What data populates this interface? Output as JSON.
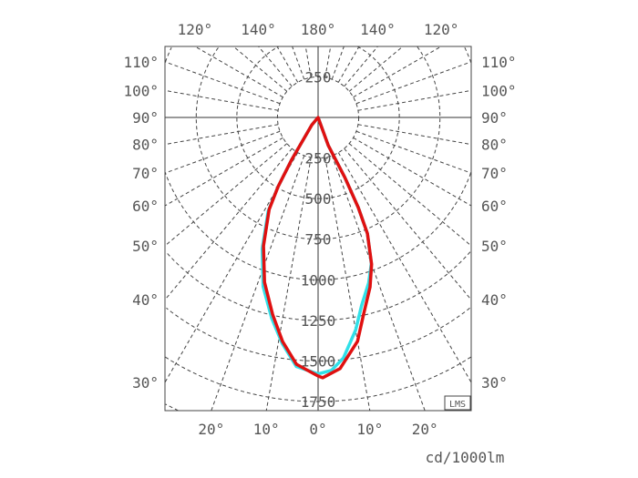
{
  "chart_data": {
    "type": "polar-line",
    "unit_label": "cd/1000lm",
    "badge": "LMS",
    "radial_ticks": [
      250,
      500,
      750,
      1000,
      1250,
      1500,
      1750
    ],
    "upper_radial_labels": [
      250
    ],
    "angle_grid_step_deg": 10,
    "top_angle_labels": [
      {
        "angle": -120,
        "label": "120°"
      },
      {
        "angle": -140,
        "label": "140°"
      },
      {
        "angle": 180,
        "label": "180°"
      },
      {
        "angle": 140,
        "label": "140°"
      },
      {
        "angle": 120,
        "label": "120°"
      }
    ],
    "side_angle_labels": [
      {
        "angle": 110,
        "label": "110°"
      },
      {
        "angle": 100,
        "label": "100°"
      },
      {
        "angle": 90,
        "label": "90°"
      },
      {
        "angle": 80,
        "label": "80°"
      },
      {
        "angle": 70,
        "label": "70°"
      },
      {
        "angle": 60,
        "label": "60°"
      },
      {
        "angle": 50,
        "label": "50°"
      },
      {
        "angle": 40,
        "label": "40°"
      },
      {
        "angle": 30,
        "label": "30°"
      }
    ],
    "bottom_angle_labels": [
      {
        "angle": -20,
        "label": "20°"
      },
      {
        "angle": -10,
        "label": "10°"
      },
      {
        "angle": 0,
        "label": "0°"
      },
      {
        "angle": 10,
        "label": "10°"
      },
      {
        "angle": 20,
        "label": "20°"
      }
    ],
    "series": [
      {
        "color": "#30e0e8",
        "points": [
          [
            -90,
            0
          ],
          [
            -40,
            60
          ],
          [
            -32,
            305
          ],
          [
            -30,
            495
          ],
          [
            -28,
            655
          ],
          [
            -23,
            880
          ],
          [
            -18,
            1095
          ],
          [
            -13,
            1270
          ],
          [
            -9,
            1410
          ],
          [
            -5,
            1540
          ],
          [
            0,
            1580
          ],
          [
            3,
            1560
          ],
          [
            6,
            1490
          ],
          [
            10,
            1330
          ],
          [
            13,
            1190
          ],
          [
            17,
            1065
          ],
          [
            20,
            958
          ],
          [
            23,
            776
          ],
          [
            24,
            608
          ],
          [
            24,
            404
          ],
          [
            20,
            184
          ],
          [
            90,
            0
          ]
        ]
      },
      {
        "color": "#e01010",
        "points": [
          [
            -90,
            0
          ],
          [
            -40,
            60
          ],
          [
            -32,
            305
          ],
          [
            -30,
            492
          ],
          [
            -28,
            642
          ],
          [
            -23,
            860
          ],
          [
            -18,
            1067
          ],
          [
            -13,
            1245
          ],
          [
            -9,
            1397
          ],
          [
            -5,
            1526
          ],
          [
            0,
            1593
          ],
          [
            1,
            1604
          ],
          [
            5,
            1553
          ],
          [
            10,
            1400
          ],
          [
            13,
            1245
          ],
          [
            17,
            1093
          ],
          [
            20,
            962
          ],
          [
            23,
            776
          ],
          [
            24,
            608
          ],
          [
            24,
            404
          ],
          [
            20,
            184
          ],
          [
            90,
            0
          ]
        ]
      }
    ]
  }
}
